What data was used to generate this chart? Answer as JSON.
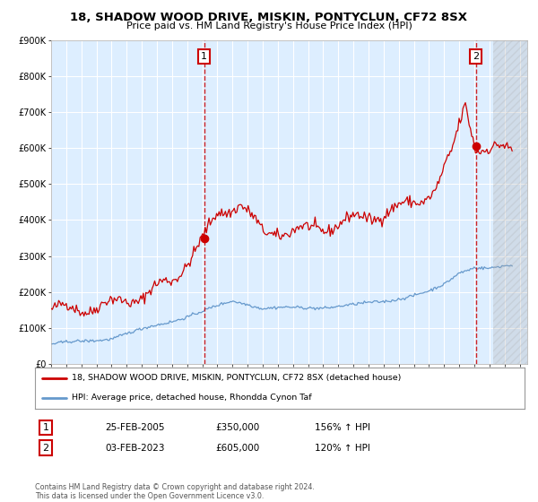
{
  "title": "18, SHADOW WOOD DRIVE, MISKIN, PONTYCLUN, CF72 8SX",
  "subtitle": "Price paid vs. HM Land Registry's House Price Index (HPI)",
  "legend_line1": "18, SHADOW WOOD DRIVE, MISKIN, PONTYCLUN, CF72 8SX (detached house)",
  "legend_line2": "HPI: Average price, detached house, Rhondda Cynon Taf",
  "annotation1_date": "25-FEB-2005",
  "annotation1_price": "£350,000",
  "annotation1_hpi": "156% ↑ HPI",
  "annotation2_date": "03-FEB-2023",
  "annotation2_price": "£605,000",
  "annotation2_hpi": "120% ↑ HPI",
  "footer": "Contains HM Land Registry data © Crown copyright and database right 2024.\nThis data is licensed under the Open Government Licence v3.0.",
  "red_line_color": "#cc0000",
  "blue_line_color": "#6699cc",
  "plot_bg_color": "#ddeeff",
  "grid_color": "#ffffff",
  "annotation_box_color": "#cc0000",
  "marker1_x_year": 2005.13,
  "marker1_y": 350000,
  "marker2_x_year": 2023.09,
  "marker2_y": 605000,
  "ylim": [
    0,
    900000
  ],
  "xlim_start": 1995,
  "xlim_end": 2026.5,
  "yticks": [
    0,
    100000,
    200000,
    300000,
    400000,
    500000,
    600000,
    700000,
    800000,
    900000
  ],
  "ytick_labels": [
    "£0",
    "£100K",
    "£200K",
    "£300K",
    "£400K",
    "£500K",
    "£600K",
    "£700K",
    "£800K",
    "£900K"
  ],
  "xticks": [
    1995,
    1996,
    1997,
    1998,
    1999,
    2000,
    2001,
    2002,
    2003,
    2004,
    2005,
    2006,
    2007,
    2008,
    2009,
    2010,
    2011,
    2012,
    2013,
    2014,
    2015,
    2016,
    2017,
    2018,
    2019,
    2020,
    2021,
    2022,
    2023,
    2024,
    2025,
    2026
  ]
}
